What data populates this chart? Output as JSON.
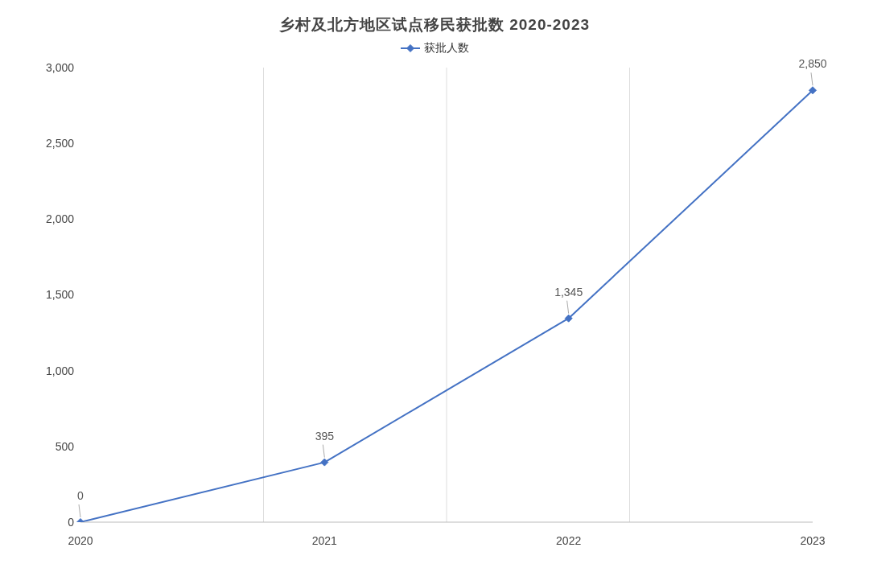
{
  "chart_data": {
    "type": "line",
    "title": "乡村及北方地区试点移民获批数 2020-2023",
    "categories": [
      "2020",
      "2021",
      "2022",
      "2023"
    ],
    "series": [
      {
        "name": "获批人数",
        "color": "#4472c4",
        "values": [
          0,
          395,
          1345,
          2850
        ],
        "value_labels": [
          "0",
          "395",
          "1,345",
          "2,850"
        ]
      }
    ],
    "ylim": [
      0,
      3000
    ],
    "yticks": [
      {
        "value": 0,
        "label": "0"
      },
      {
        "value": 500,
        "label": "500"
      },
      {
        "value": 1000,
        "label": "1,000"
      },
      {
        "value": 1500,
        "label": "1,500"
      },
      {
        "value": 2000,
        "label": "2,000"
      },
      {
        "value": 2500,
        "label": "2,500"
      },
      {
        "value": 3000,
        "label": "3,000"
      }
    ],
    "grid": "x",
    "legend": "top",
    "marker": "diamond",
    "line_style": "solid"
  }
}
